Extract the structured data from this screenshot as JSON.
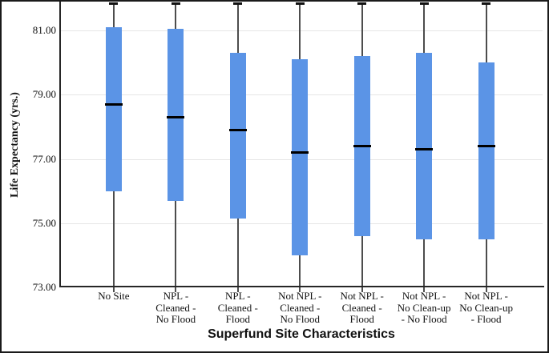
{
  "figure": {
    "background": "#ffffff",
    "frame_color": "#1a1a1a"
  },
  "chart_data": {
    "type": "boxplot",
    "title": "",
    "xlabel": "Superfund Site Characteristics",
    "ylabel": "Life Expectancy (yrs.)",
    "ylim": [
      73,
      81.9
    ],
    "grid": "horizontal-light-gray",
    "legend": "none",
    "y_ticks": [
      {
        "value": 81,
        "label": "81.00"
      },
      {
        "value": 79,
        "label": "79.00"
      },
      {
        "value": 77,
        "label": "77.00"
      },
      {
        "value": 75,
        "label": "75.00"
      },
      {
        "value": 73,
        "label": "73.00"
      }
    ],
    "whiskers_clipped_to_plot": true,
    "whisker_top_cap_at_plot_top": true,
    "box_fill_color": "#5B94E6",
    "median_color": "#000000",
    "whisker_color": "#4d4d4d",
    "gridline_color": "#e6e6e6",
    "axis_color": "#262626",
    "categories": [
      {
        "label_lines": [
          "No Site"
        ],
        "q1": 76.0,
        "median": 78.7,
        "q3": 81.1
      },
      {
        "label_lines": [
          "NPL -",
          "Cleaned -",
          "No Flood"
        ],
        "q1": 75.7,
        "median": 78.3,
        "q3": 81.05
      },
      {
        "label_lines": [
          "NPL -",
          "Cleaned -",
          "Flood"
        ],
        "q1": 75.15,
        "median": 77.9,
        "q3": 80.3
      },
      {
        "label_lines": [
          "Not NPL -",
          "Cleaned -",
          "No Flood"
        ],
        "q1": 74.0,
        "median": 77.2,
        "q3": 80.1
      },
      {
        "label_lines": [
          "Not NPL -",
          "Cleaned -",
          "Flood"
        ],
        "q1": 74.6,
        "median": 77.4,
        "q3": 80.2
      },
      {
        "label_lines": [
          "Not NPL -",
          "No Clean-up",
          "- No Flood"
        ],
        "q1": 74.5,
        "median": 77.3,
        "q3": 80.3
      },
      {
        "label_lines": [
          "Not NPL -",
          "No Clean-up",
          "- Flood"
        ],
        "q1": 74.5,
        "median": 77.4,
        "q3": 80.0
      }
    ]
  }
}
